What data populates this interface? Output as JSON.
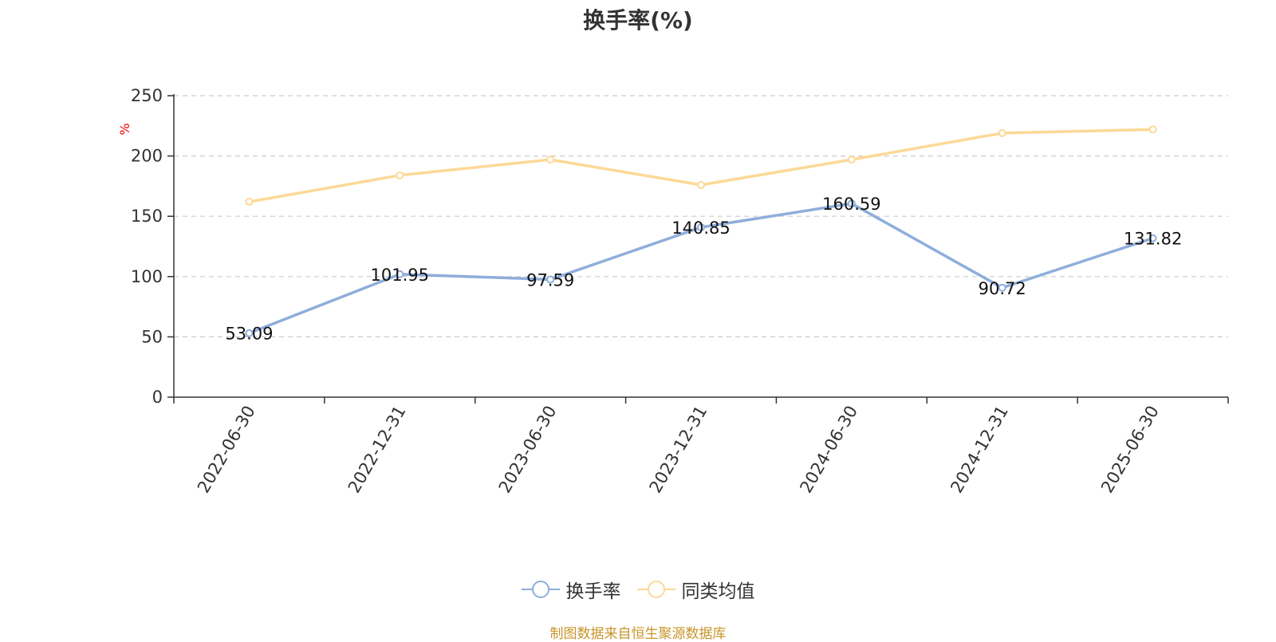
{
  "title": "换手率(%)",
  "source": "制图数据来自恒生聚源数据库",
  "legend": {
    "series0": "换手率",
    "series1": "同类均值"
  },
  "colors": {
    "series0": "#8eaedb",
    "series1": "#fdd997",
    "unit": "#ee0000",
    "source": "#c8952b",
    "grid": "#cccccc",
    "axis": "#333333"
  },
  "chart_data": {
    "type": "line",
    "title": "换手率(%)",
    "ylabel": "%",
    "xlabel": "",
    "ylim": [
      0,
      250
    ],
    "yticks": [
      0,
      50,
      100,
      150,
      200,
      250
    ],
    "grid": "horizontal-dashed",
    "legend_position": "bottom-center",
    "categories": [
      "2022-06-30",
      "2022-12-31",
      "2023-06-30",
      "2023-12-31",
      "2024-06-30",
      "2024-12-31",
      "2025-06-30"
    ],
    "series": [
      {
        "name": "换手率",
        "values": [
          53.09,
          101.95,
          97.59,
          140.85,
          160.59,
          90.72,
          131.82
        ],
        "data_labels": [
          "53.09",
          "101.95",
          "97.59",
          "140.85",
          "160.59",
          "90.72",
          "131.82"
        ]
      },
      {
        "name": "同类均值",
        "values": [
          162,
          184,
          197,
          176,
          197,
          219,
          222
        ]
      }
    ]
  }
}
